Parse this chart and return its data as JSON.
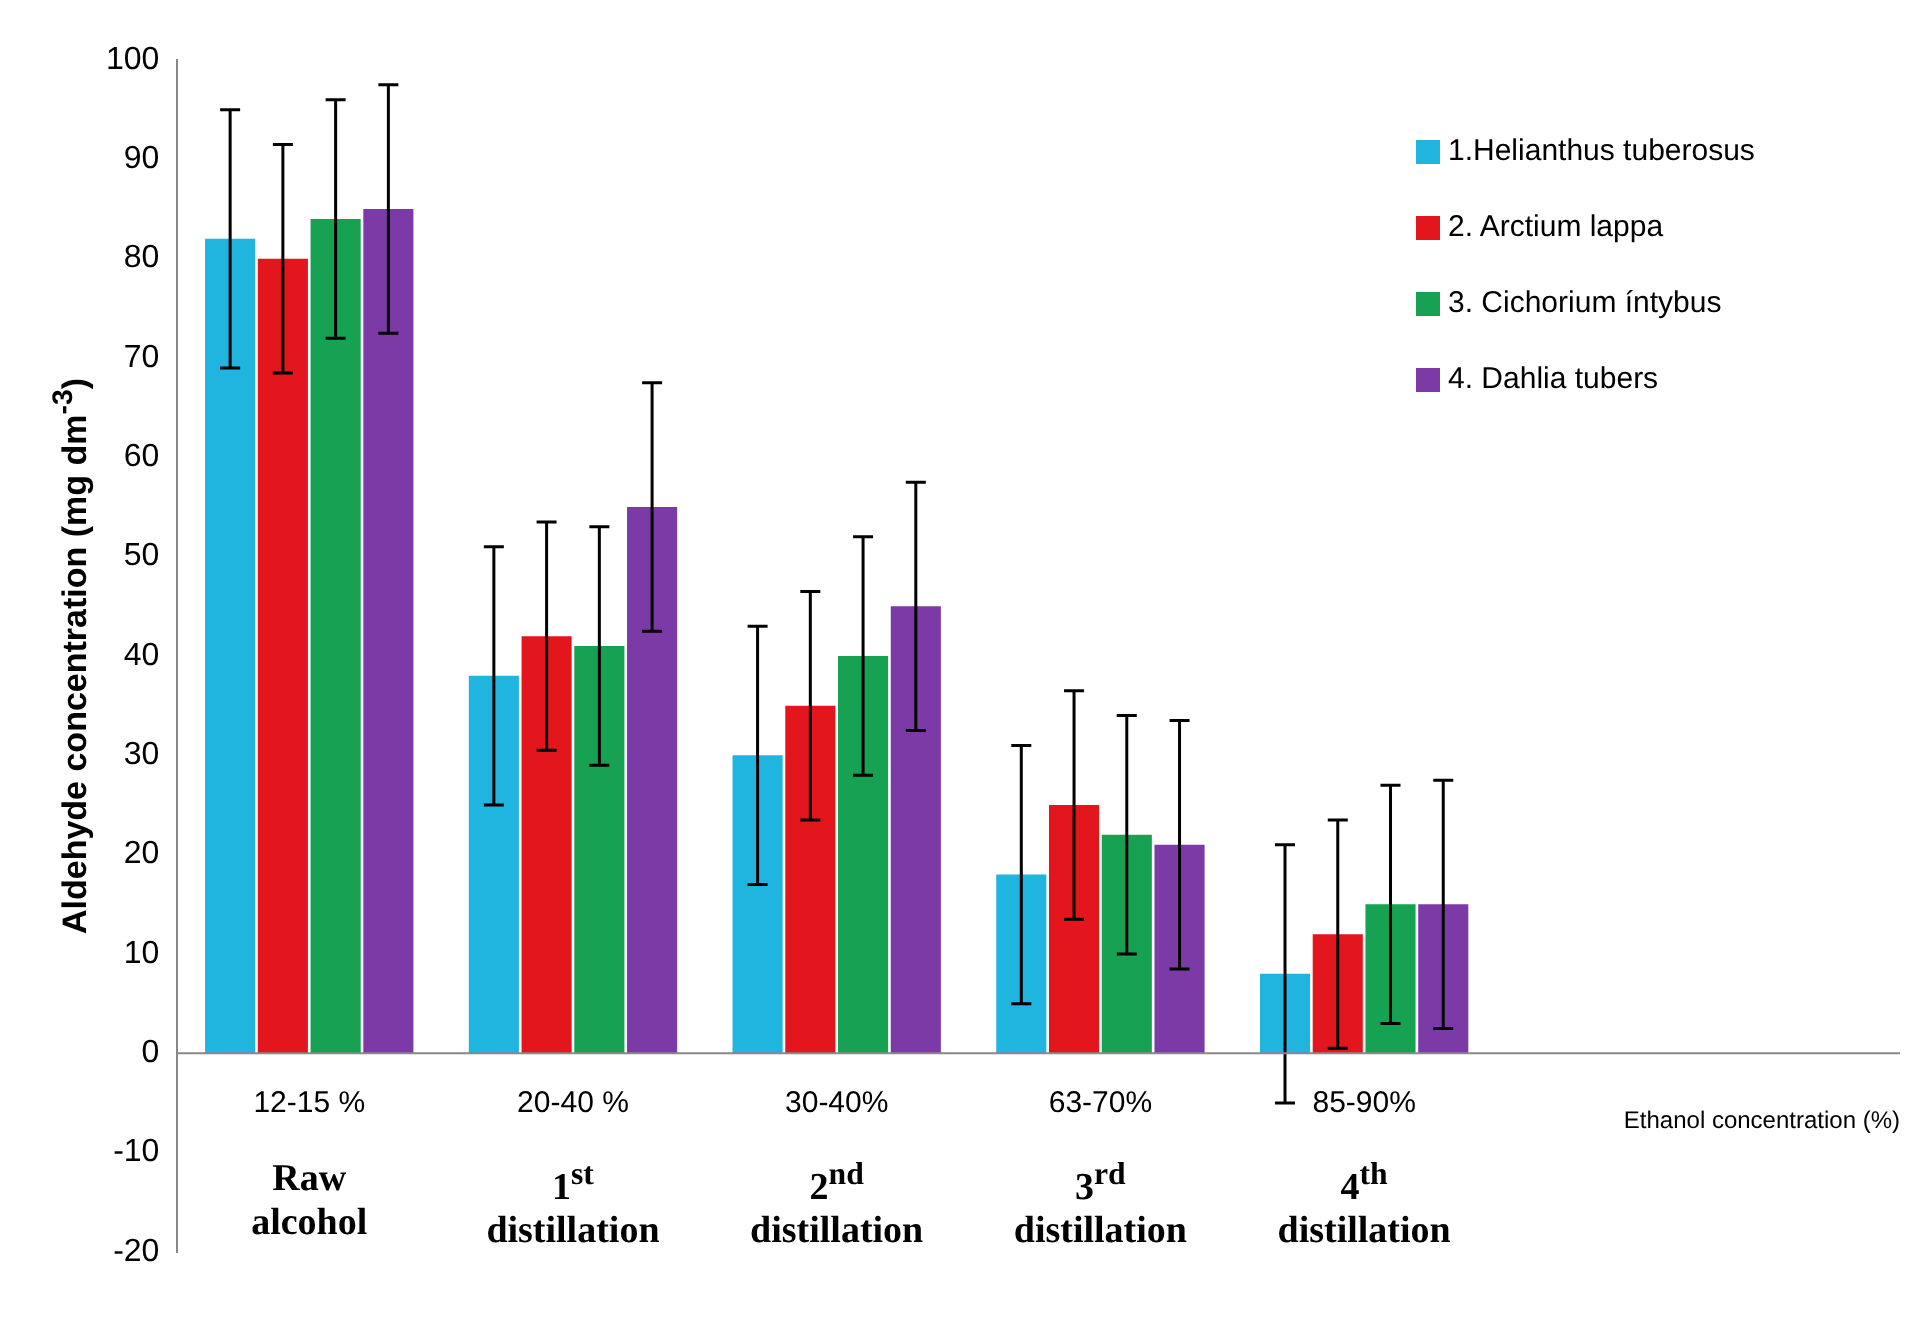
{
  "chart_data": {
    "type": "bar",
    "ylabel": "Aldehyde concentration (mg dm$^{-3}$)",
    "categories": [
      "12-15 %",
      "20-40 %",
      "30-40%",
      "63-70%",
      "85-90%"
    ],
    "series": [
      {
        "name": "1.Helianthus tuberosus",
        "color": "#1fb5df",
        "values": [
          82,
          38,
          30,
          18,
          8
        ],
        "errors": [
          13,
          13,
          13,
          13,
          13
        ]
      },
      {
        "name": "2. Arctium lappa",
        "color": "#e3161d",
        "values": [
          80,
          42,
          35,
          25,
          12
        ],
        "errors": [
          11.5,
          11.5,
          11.5,
          11.5,
          11.5
        ]
      },
      {
        "name": "3. Cichorium íntybus",
        "color": "#17a152",
        "values": [
          84,
          41,
          40,
          22,
          15
        ],
        "errors": [
          12,
          12,
          12,
          12,
          12
        ]
      },
      {
        "name": "4. Dahlia tubers",
        "color": "#7b3aa6",
        "values": [
          85,
          55,
          45,
          21,
          15
        ],
        "errors": [
          12.5,
          12.5,
          12.5,
          12.5,
          12.5
        ]
      }
    ],
    "annotations": [
      "Raw alcohol",
      "1$^{st}$ distillation",
      "2$^{nd}$ distillation",
      "3$^{rd}$ distillation",
      "4$^{th}$ distillation",
      "Ethanol concentration (%)"
    ],
    "ylim": [
      -20,
      100
    ],
    "yticks": [
      -20,
      -10,
      0,
      10,
      20,
      30,
      40,
      50,
      60,
      70,
      80,
      90,
      100
    ],
    "grid": false,
    "legend": "top right"
  }
}
